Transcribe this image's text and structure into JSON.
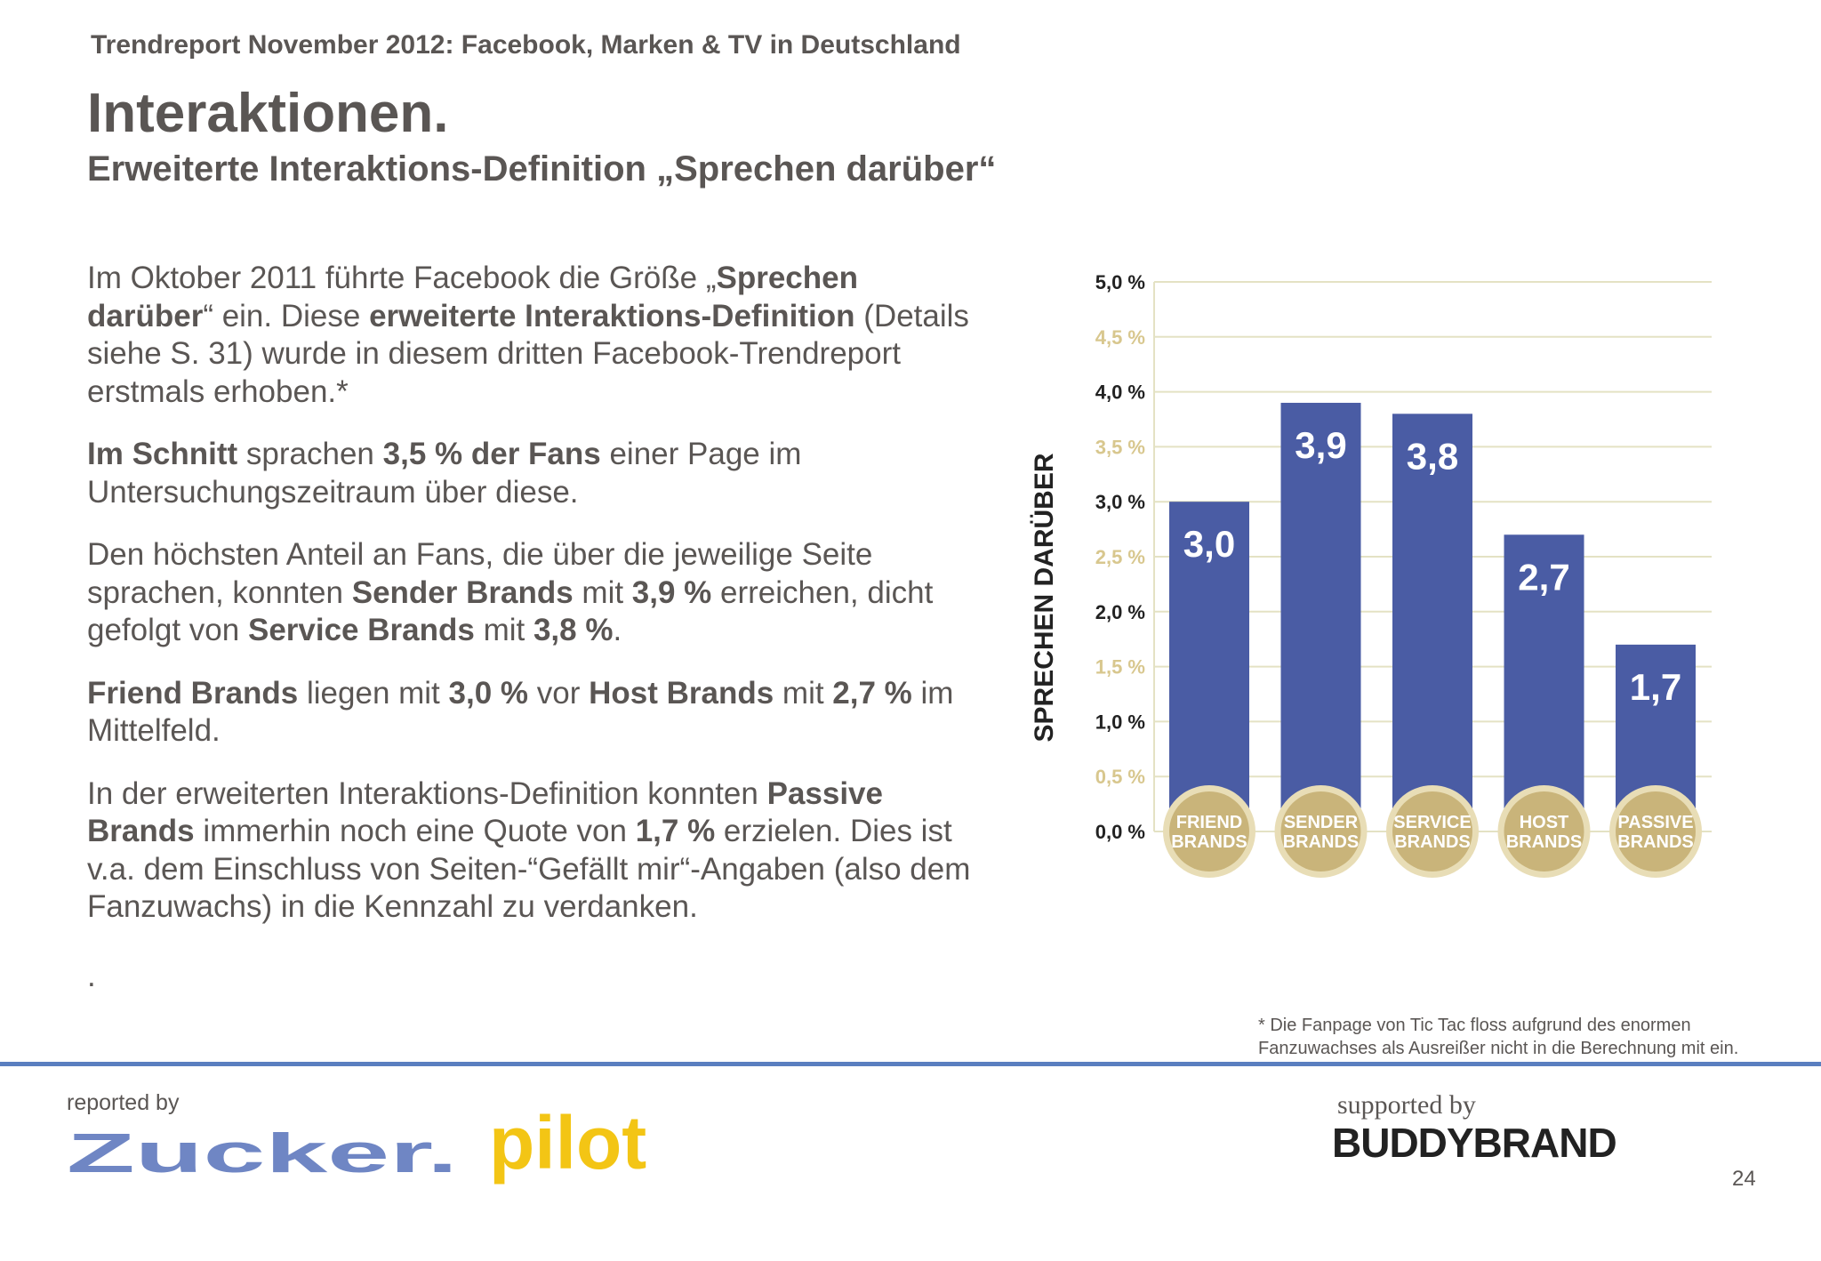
{
  "header": "Trendreport November 2012: Facebook, Marken & TV in Deutschland",
  "title": "Interaktionen.",
  "subtitle": "Erweiterte Interaktions-Definition „Sprechen darüber“",
  "paragraphs": [
    [
      {
        "t": "Im Oktober 2011 führte Facebook die Größe „",
        "b": false
      },
      {
        "t": "Sprechen darüber",
        "b": true
      },
      {
        "t": "“ ein. Diese ",
        "b": false
      },
      {
        "t": "erweiterte Interaktions-Definition",
        "b": true
      },
      {
        "t": " (Details siehe S. 31) wurde in diesem dritten Facebook-Trendreport erstmals erhoben.*",
        "b": false
      }
    ],
    [
      {
        "t": "Im Schnitt",
        "b": true
      },
      {
        "t": " sprachen ",
        "b": false
      },
      {
        "t": "3,5 % der Fans",
        "b": true
      },
      {
        "t": " einer Page im Untersuchungszeitraum über diese.",
        "b": false
      }
    ],
    [
      {
        "t": "Den höchsten Anteil an Fans, die über die jeweilige Seite sprachen, konnten ",
        "b": false
      },
      {
        "t": "Sender Brands",
        "b": true
      },
      {
        "t": " mit ",
        "b": false
      },
      {
        "t": "3,9 %",
        "b": true
      },
      {
        "t": " erreichen, dicht gefolgt von ",
        "b": false
      },
      {
        "t": "Service Brands",
        "b": true
      },
      {
        "t": " mit ",
        "b": false
      },
      {
        "t": "3,8 %",
        "b": true
      },
      {
        "t": ".",
        "b": false
      }
    ],
    [
      {
        "t": "Friend Brands",
        "b": true
      },
      {
        "t": " liegen mit ",
        "b": false
      },
      {
        "t": "3,0 %",
        "b": true
      },
      {
        "t": " vor ",
        "b": false
      },
      {
        "t": "Host Brands",
        "b": true
      },
      {
        "t": " mit ",
        "b": false
      },
      {
        "t": "2,7 %",
        "b": true
      },
      {
        "t": " im Mittelfeld.",
        "b": false
      }
    ],
    [
      {
        "t": "In der erweiterten Interaktions-Definition konnten ",
        "b": false
      },
      {
        "t": "Passive Brands",
        "b": true
      },
      {
        "t": " immerhin noch eine Quote von ",
        "b": false
      },
      {
        "t": "1,7 %",
        "b": true
      },
      {
        "t": " erzielen. Dies ist v.a. dem Einschluss von Seiten-“Gefällt mir“-Angaben (also dem Fanzuwachs) in die Kennzahl zu verdanken.",
        "b": false
      }
    ]
  ],
  "trailing_dot": ".",
  "chart_data": {
    "type": "bar",
    "ylabel": "SPRECHEN DARÜBER",
    "ylim": [
      0,
      5
    ],
    "yticks": [
      0,
      0.5,
      1,
      1.5,
      2,
      2.5,
      3,
      3.5,
      4,
      4.5,
      5
    ],
    "ytick_labels": [
      "0,0 %",
      "0,5 %",
      "1,0 %",
      "1,5 %",
      "2,0 %",
      "2,5 %",
      "3,0 %",
      "3,5 %",
      "4,0 %",
      "4,5 %",
      "5,0 %"
    ],
    "categories": [
      [
        "FRIEND",
        "BRANDS"
      ],
      [
        "SENDER",
        "BRANDS"
      ],
      [
        "SERVICE",
        "BRANDS"
      ],
      [
        "HOST",
        "BRANDS"
      ],
      [
        "PASSIVE",
        "BRANDS"
      ]
    ],
    "values": [
      3.0,
      3.9,
      3.8,
      2.7,
      1.7
    ],
    "value_labels": [
      "3,0",
      "3,9",
      "3,8",
      "2,7",
      "1,7"
    ],
    "grid": true,
    "colors": {
      "bar": "#4a5ca4",
      "grid": "#e4e2c4",
      "tick_major": "#222222",
      "tick_minor": "#d8c78e",
      "badge": "#c9b47a",
      "badge_text": "#ffffff"
    }
  },
  "footnote": "* Die Fanpage von Tic Tac floss aufgrund des enormen Fanzuwachses als Ausreißer nicht in die Berechnung mit ein.",
  "footer": {
    "reported_by": "reported by",
    "supported_by": "supported by",
    "buddybrand": "BUDDYBRAND",
    "zucker_logo": "Zucker.",
    "pilot_logo": "pilot",
    "page_number": "24"
  },
  "colors": {
    "divider": "#5a7fc0",
    "zucker": "#6f86c4",
    "pilot": "#f3c515"
  }
}
